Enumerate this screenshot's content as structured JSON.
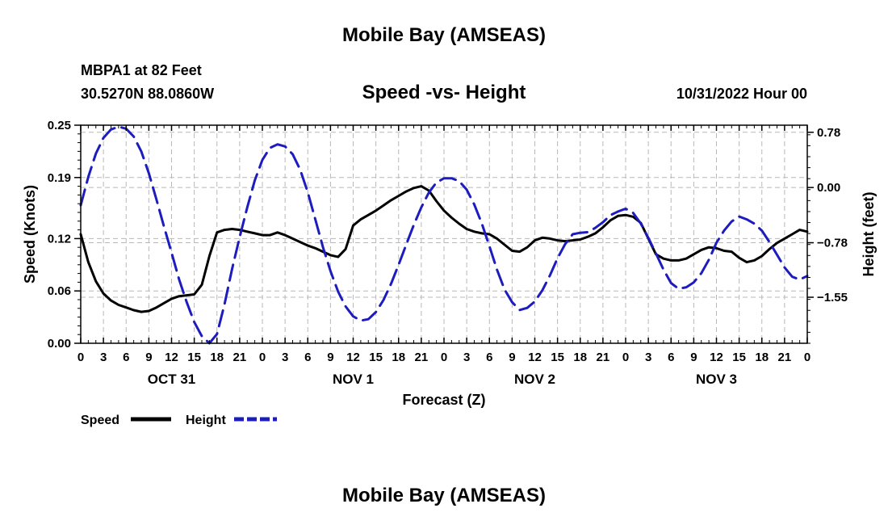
{
  "page": {
    "title_top": "Mobile Bay (AMSEAS)",
    "title_bottom": "Mobile Bay (AMSEAS)"
  },
  "header": {
    "station": "MBPA1 at 82 Feet",
    "coords": "30.5270N  88.0860W",
    "subtitle": "Speed -vs- Height",
    "run": "10/31/2022 Hour 00"
  },
  "chart_data": {
    "type": "line",
    "xlabel": "Forecast (Z)",
    "ylabel": "Speed (Knots)",
    "y2label": "Height (feet)",
    "xlim": [
      0,
      96
    ],
    "ylim": [
      0,
      0.25
    ],
    "y2lim": [
      -2.2,
      0.88
    ],
    "grid": true,
    "legend_placement": "bottom-left",
    "x_tick_labels": [
      "0",
      "3",
      "6",
      "9",
      "12",
      "15",
      "18",
      "21",
      "0",
      "3",
      "6",
      "9",
      "12",
      "15",
      "18",
      "21",
      "0",
      "3",
      "6",
      "9",
      "12",
      "15",
      "18",
      "21",
      "0",
      "3",
      "6",
      "9",
      "12",
      "15",
      "18",
      "21",
      "0"
    ],
    "y_ticks": [
      0.0,
      0.06,
      0.12,
      0.19,
      0.25
    ],
    "y_tick_labels": [
      "0.00",
      "0.06",
      "0.12",
      "0.19",
      "0.25"
    ],
    "y2_ticks": [
      0.78,
      0.0,
      -0.78,
      -1.55
    ],
    "y2_tick_labels": [
      "0.78",
      "0.00",
      "−0.78",
      "−1.55"
    ],
    "day_labels": [
      {
        "label": "OCT 31",
        "hour": 12
      },
      {
        "label": "NOV 1",
        "hour": 36
      },
      {
        "label": "NOV 2",
        "hour": 60
      },
      {
        "label": "NOV 3",
        "hour": 84
      }
    ],
    "series": [
      {
        "name": "Speed",
        "axis": "left",
        "color": "#000000",
        "style": "solid",
        "x": [
          0,
          1,
          2,
          3,
          4,
          5,
          6,
          7,
          8,
          9,
          10,
          11,
          12,
          13,
          14,
          15,
          16,
          17,
          18,
          19,
          20,
          21,
          22,
          23,
          24,
          25,
          26,
          27,
          28,
          29,
          30,
          31,
          32,
          33,
          34,
          35,
          36,
          37,
          38,
          39,
          40,
          41,
          42,
          43,
          44,
          45,
          46,
          47,
          48,
          49,
          50,
          51,
          52,
          53,
          54,
          55,
          56,
          57,
          58,
          59,
          60,
          61,
          62,
          63,
          64,
          65,
          66,
          67,
          68,
          69,
          70,
          71,
          72,
          73,
          74,
          75,
          76,
          77,
          78,
          79,
          80,
          81,
          82,
          83,
          84,
          85,
          86,
          87,
          88,
          89,
          90,
          91,
          92,
          93,
          94,
          95,
          96
        ],
        "y": [
          0.125,
          0.093,
          0.071,
          0.057,
          0.049,
          0.044,
          0.041,
          0.038,
          0.036,
          0.037,
          0.041,
          0.046,
          0.051,
          0.054,
          0.055,
          0.056,
          0.067,
          0.1,
          0.127,
          0.13,
          0.131,
          0.13,
          0.128,
          0.126,
          0.124,
          0.124,
          0.127,
          0.124,
          0.12,
          0.116,
          0.112,
          0.109,
          0.105,
          0.101,
          0.099,
          0.108,
          0.135,
          0.142,
          0.147,
          0.152,
          0.158,
          0.164,
          0.169,
          0.174,
          0.178,
          0.18,
          0.175,
          0.163,
          0.152,
          0.144,
          0.137,
          0.131,
          0.128,
          0.126,
          0.125,
          0.12,
          0.113,
          0.106,
          0.105,
          0.11,
          0.118,
          0.121,
          0.12,
          0.118,
          0.117,
          0.118,
          0.119,
          0.122,
          0.126,
          0.133,
          0.141,
          0.146,
          0.147,
          0.145,
          0.138,
          0.12,
          0.102,
          0.097,
          0.095,
          0.095,
          0.097,
          0.102,
          0.107,
          0.11,
          0.109,
          0.106,
          0.105,
          0.098,
          0.093,
          0.095,
          0.1,
          0.108,
          0.115,
          0.12,
          0.125,
          0.13,
          0.128
        ]
      },
      {
        "name": "Height",
        "axis": "right",
        "color": "#1c1cbf",
        "style": "dashed",
        "x": [
          0,
          1,
          2,
          3,
          4,
          5,
          6,
          7,
          8,
          9,
          10,
          11,
          12,
          13,
          14,
          15,
          16,
          17,
          18,
          19,
          20,
          21,
          22,
          23,
          24,
          25,
          26,
          27,
          28,
          29,
          30,
          31,
          32,
          33,
          34,
          35,
          36,
          37,
          38,
          39,
          40,
          41,
          42,
          43,
          44,
          45,
          46,
          47,
          48,
          49,
          50,
          51,
          52,
          53,
          54,
          55,
          56,
          57,
          58,
          59,
          60,
          61,
          62,
          63,
          64,
          65,
          66,
          67,
          68,
          69,
          70,
          71,
          72,
          73,
          74,
          75,
          76,
          77,
          78,
          79,
          80,
          81,
          82,
          83,
          84,
          85,
          86,
          87,
          88,
          89,
          90,
          91,
          92,
          93,
          94,
          95,
          96
        ],
        "y": [
          -0.25,
          0.15,
          0.48,
          0.7,
          0.82,
          0.86,
          0.83,
          0.72,
          0.51,
          0.2,
          -0.17,
          -0.55,
          -0.92,
          -1.3,
          -1.62,
          -1.9,
          -2.1,
          -2.2,
          -2.07,
          -1.65,
          -1.15,
          -0.7,
          -0.28,
          0.1,
          0.39,
          0.56,
          0.61,
          0.58,
          0.47,
          0.25,
          -0.07,
          -0.45,
          -0.84,
          -1.18,
          -1.47,
          -1.68,
          -1.82,
          -1.88,
          -1.86,
          -1.76,
          -1.59,
          -1.36,
          -1.09,
          -0.81,
          -0.53,
          -0.28,
          -0.07,
          0.07,
          0.13,
          0.13,
          0.09,
          -0.03,
          -0.24,
          -0.51,
          -0.83,
          -1.16,
          -1.44,
          -1.62,
          -1.73,
          -1.7,
          -1.61,
          -1.45,
          -1.24,
          -1.0,
          -0.8,
          -0.66,
          -0.64,
          -0.63,
          -0.57,
          -0.49,
          -0.39,
          -0.34,
          -0.3,
          -0.36,
          -0.51,
          -0.71,
          -0.93,
          -1.16,
          -1.35,
          -1.43,
          -1.41,
          -1.34,
          -1.21,
          -1.02,
          -0.78,
          -0.61,
          -0.48,
          -0.41,
          -0.45,
          -0.51,
          -0.61,
          -0.77,
          -0.95,
          -1.13,
          -1.26,
          -1.3,
          -1.25
        ]
      }
    ]
  }
}
